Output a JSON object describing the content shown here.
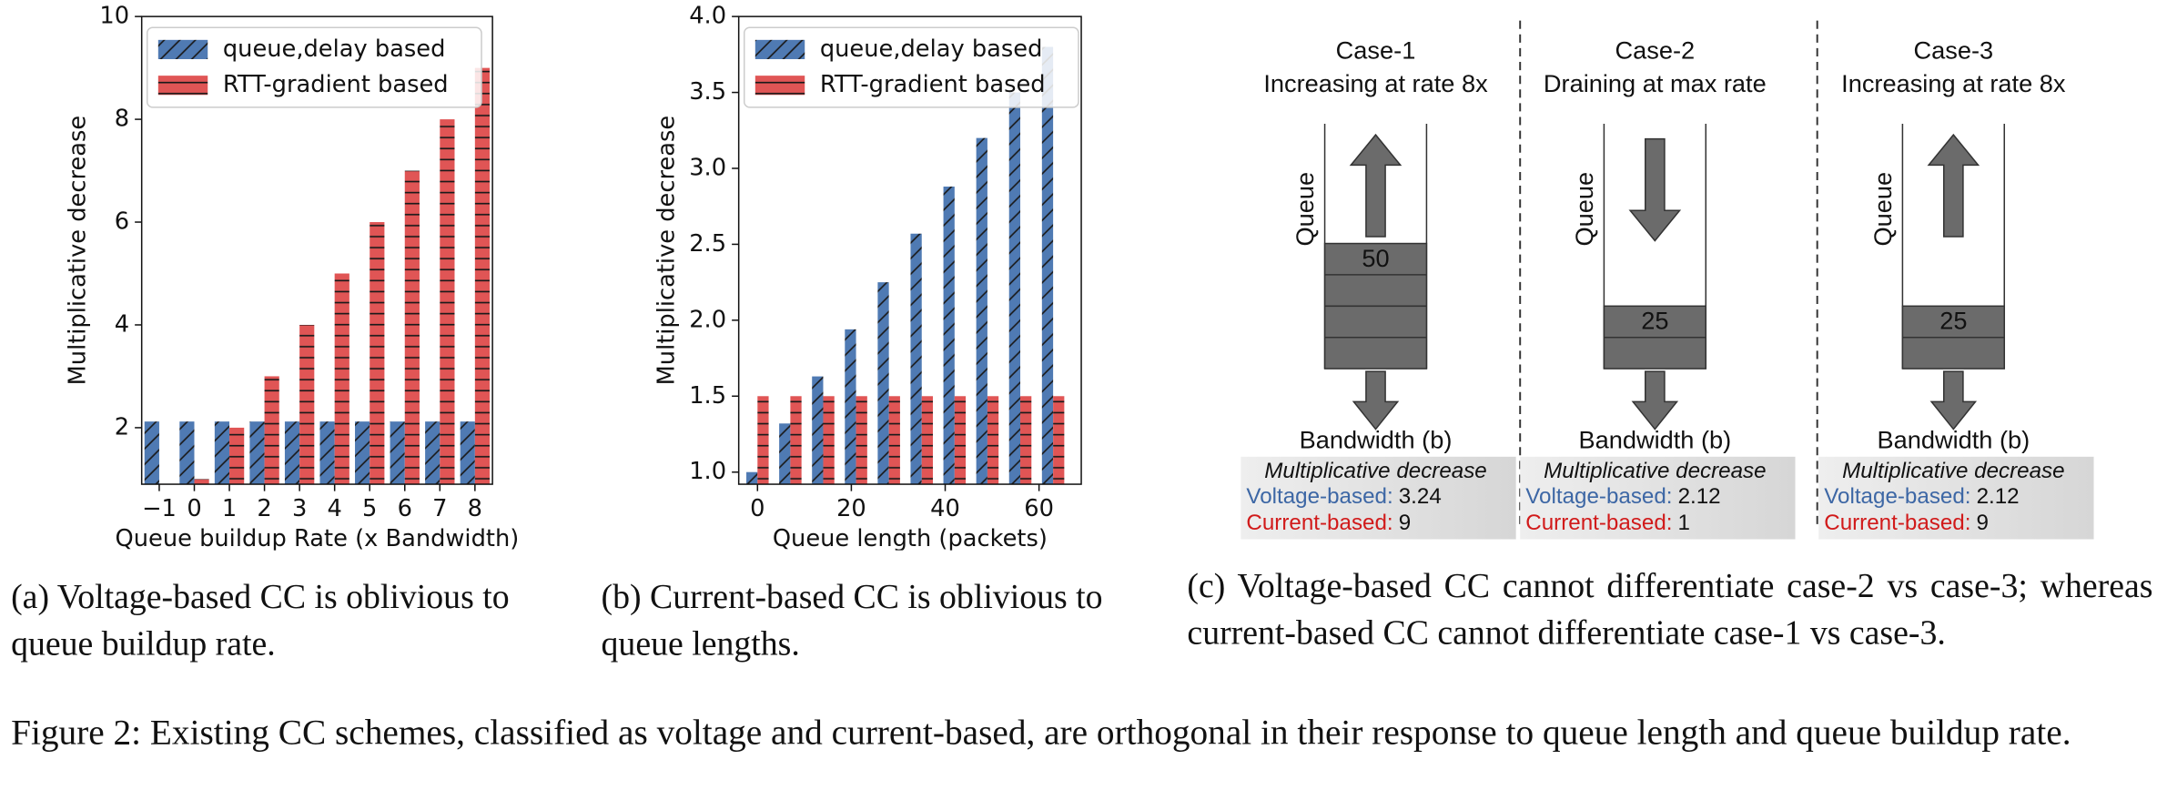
{
  "chart_data": [
    {
      "type": "bar",
      "y_label": "Multiplicative decrease",
      "x_label": "Queue buildup Rate (x Bandwidth)",
      "categories": [
        "−1",
        "0",
        "1",
        "2",
        "3",
        "4",
        "5",
        "6",
        "7",
        "8"
      ],
      "series": [
        {
          "name": "queue,delay based",
          "color": "#4f7ab3",
          "hatch": "diagonal",
          "values": [
            2.12,
            2.12,
            2.12,
            2.12,
            2.12,
            2.12,
            2.12,
            2.12,
            2.12,
            2.12
          ]
        },
        {
          "name": "RTT-gradient based",
          "color": "#e05555",
          "hatch": "horizontal",
          "values": [
            0,
            1,
            2,
            3,
            4,
            5,
            6,
            7,
            8,
            9
          ]
        }
      ],
      "ylim": [
        0.9,
        10
      ],
      "yticks": [
        2,
        4,
        6,
        8,
        10
      ],
      "legend": "upper left"
    },
    {
      "type": "bar",
      "y_label": "Multiplicative decrease",
      "x_label": "Queue length (packets)",
      "x": [
        0,
        7,
        14,
        21,
        28,
        35,
        42,
        49,
        56,
        63
      ],
      "series": [
        {
          "name": "queue,delay based",
          "color": "#4f7ab3",
          "hatch": "diagonal",
          "values": [
            1.0,
            1.32,
            1.63,
            1.94,
            2.25,
            2.57,
            2.88,
            3.2,
            3.5,
            3.8
          ]
        },
        {
          "name": "RTT-gradient based",
          "color": "#e05555",
          "hatch": "horizontal",
          "values": [
            1.5,
            1.5,
            1.5,
            1.5,
            1.5,
            1.5,
            1.5,
            1.5,
            1.5,
            1.5
          ]
        }
      ],
      "xlim": [
        -4,
        69
      ],
      "xticks": [
        0,
        20,
        40,
        60
      ],
      "ylim": [
        0.92,
        4.0
      ],
      "yticks": [
        {
          "value": 1.0,
          "label": "1.0"
        },
        1.5,
        {
          "value": 2.0,
          "label": "2.0"
        },
        2.5,
        {
          "value": 3.0,
          "label": "3.0"
        },
        3.5,
        {
          "value": 4.0,
          "label": "4.0"
        }
      ],
      "legend": "upper left"
    }
  ],
  "diagram": {
    "cases": [
      {
        "title": "Case-1",
        "subtitle": "Increasing at rate 8x",
        "queue_label": "Queue",
        "queue_value": 50,
        "bandwidth": "Bandwidth (b)",
        "box_title": "Multiplicative decrease",
        "voltage_label": "Voltage-based:",
        "voltage_value": 3.24,
        "current_label": "Current-based:",
        "current_value": 9
      },
      {
        "title": "Case-2",
        "subtitle": "Draining at max rate",
        "queue_label": "Queue",
        "queue_value": 25,
        "bandwidth": "Bandwidth (b)",
        "box_title": "Multiplicative decrease",
        "voltage_label": "Voltage-based:",
        "voltage_value": 2.12,
        "current_label": "Current-based:",
        "current_value": 1
      },
      {
        "title": "Case-3",
        "subtitle": "Increasing at rate 8x",
        "queue_label": "Queue",
        "queue_value": 25,
        "bandwidth": "Bandwidth (b)",
        "box_title": "Multiplicative decrease",
        "voltage_label": "Voltage-based:",
        "voltage_value": 2.12,
        "current_label": "Current-based:",
        "current_value": 9
      }
    ]
  },
  "captions": {
    "a": "(a) Voltage-based CC is oblivious to queue buildup rate.",
    "b": "(b) Current-based CC is oblivious to queue lengths.",
    "c": "(c) Voltage-based CC cannot differentiate case-2 vs case-3; whereas current-based CC cannot differentiate case-1 vs case-3.",
    "figure": "Figure 2: Existing CC schemes, classified as voltage and current-based, are orthogonal in their response to queue length and queue buildup rate."
  }
}
